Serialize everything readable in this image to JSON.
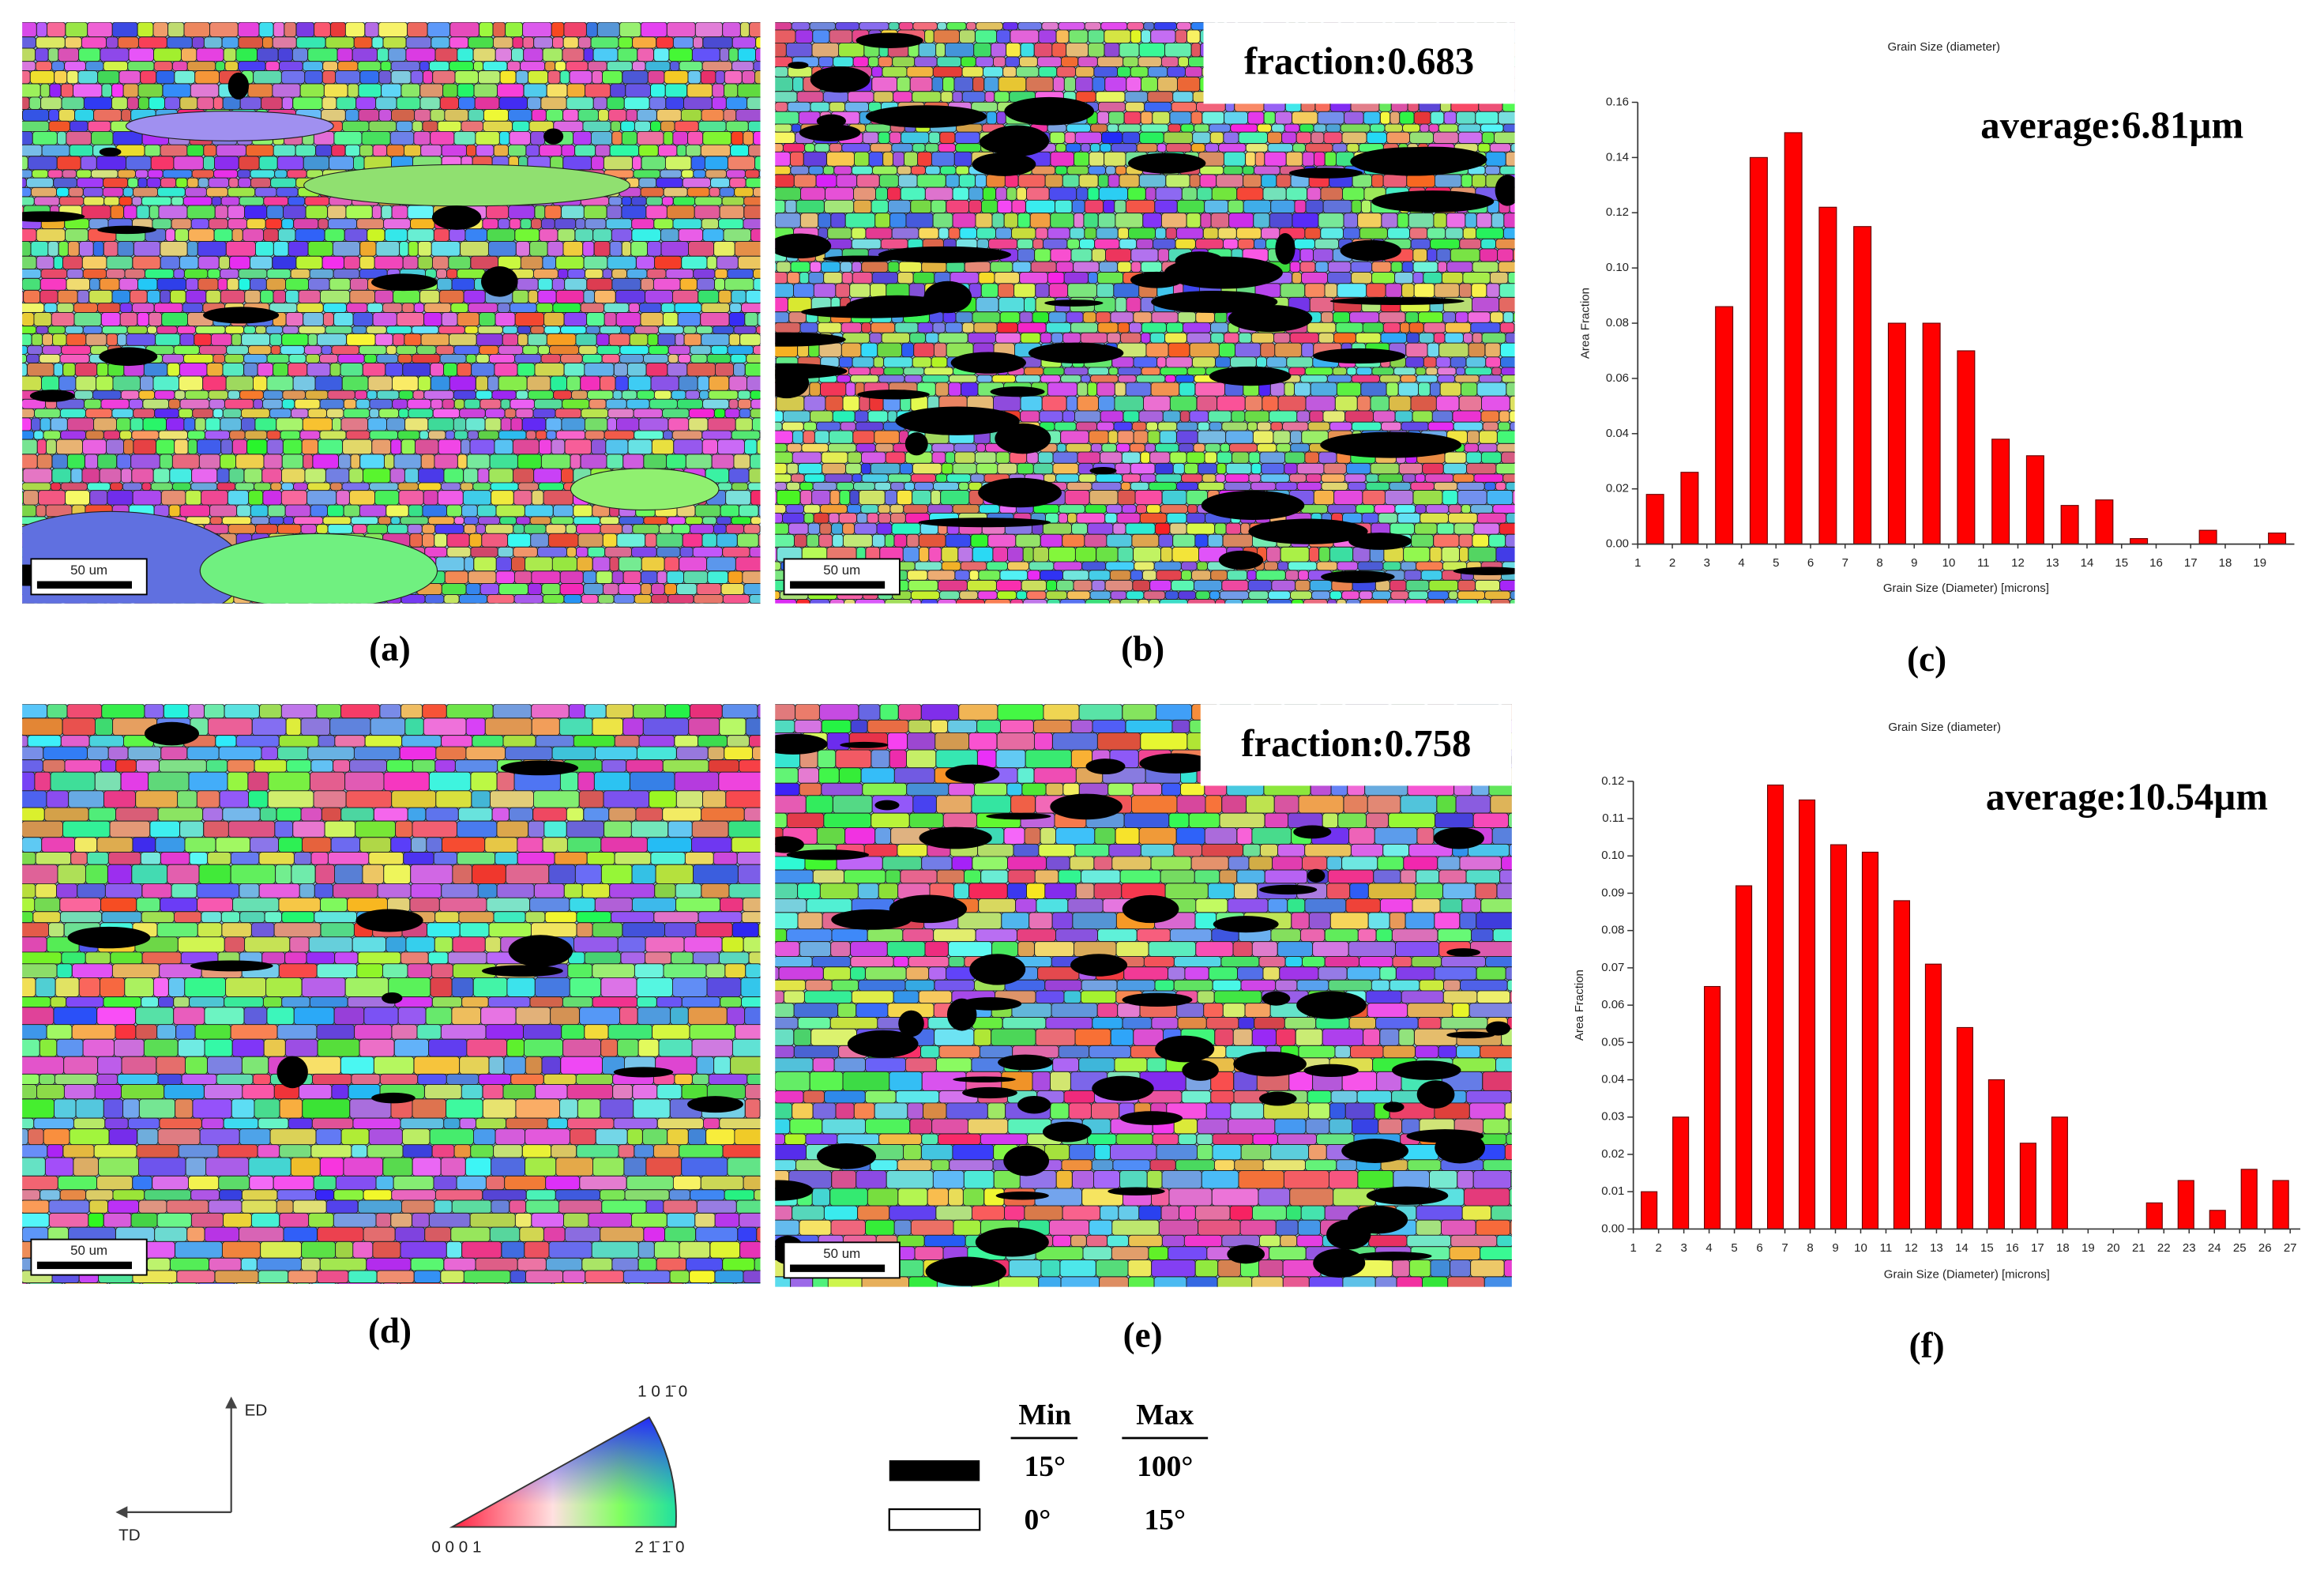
{
  "panel_labels": [
    "(a)",
    "(b)",
    "(c)",
    "(d)",
    "(e)",
    "(f)"
  ],
  "maps": [
    {
      "scale_bar": "50 um"
    },
    {
      "scale_bar": "50 um",
      "fraction": "fraction:0.683"
    },
    {
      "scale_bar": "50 um"
    },
    {
      "scale_bar": "50 um",
      "fraction": "fraction:0.758"
    }
  ],
  "chart_data": [
    {
      "type": "histogram",
      "title": "Grain Size (diameter)",
      "xlabel": "Grain Size (Diameter) [microns]",
      "ylabel": "Area Fraction",
      "annotation": "average:6.81µm",
      "color": "#ff0000",
      "bins": [
        1,
        2,
        3,
        4,
        5,
        6,
        7,
        8,
        9,
        10,
        11,
        12,
        13,
        14,
        15,
        16,
        17,
        18,
        19,
        20
      ],
      "values": [
        0.018,
        0.026,
        0.086,
        0.14,
        0.149,
        0.122,
        0.115,
        0.08,
        0.08,
        0.07,
        0.038,
        0.032,
        0.014,
        0.016,
        0.002,
        0,
        0.005,
        0,
        0.004
      ],
      "xlim": [
        1,
        20
      ],
      "xticks": [
        1,
        2,
        3,
        4,
        5,
        6,
        7,
        8,
        9,
        10,
        11,
        12,
        13,
        14,
        15,
        16,
        17,
        18,
        19
      ],
      "ylim": [
        0,
        0.16
      ],
      "yticks": [
        {
          "value": 0,
          "label": "0.00"
        },
        0.02,
        0.04,
        0.06,
        0.08,
        {
          "value": 0.1,
          "label": "0.10"
        },
        0.12,
        0.14,
        0.16
      ]
    },
    {
      "type": "histogram",
      "title": "Grain Size (diameter)",
      "xlabel": "Grain Size (Diameter) [microns]",
      "ylabel": "Area Fraction",
      "annotation": "average:10.54µm",
      "color": "#ff0000",
      "bins": [
        1,
        2.25,
        3.5,
        4.75,
        6,
        7.25,
        8.5,
        9.75,
        11,
        12.25,
        13.5,
        14.75,
        16,
        17.25,
        18.5,
        19.75,
        21,
        22.25,
        23.5,
        24.75,
        26,
        27.25
      ],
      "values": [
        0.01,
        0.03,
        0.065,
        0.092,
        0.119,
        0.115,
        0.103,
        0.101,
        0.088,
        0.071,
        0.054,
        0.04,
        0.023,
        0.03,
        0,
        0,
        0.007,
        0.013,
        0.005,
        0.016,
        0.013
      ],
      "xlim": [
        1,
        27.4
      ],
      "xticks": [
        1,
        2,
        3,
        4,
        5,
        6,
        7,
        8,
        9,
        10,
        11,
        12,
        13,
        14,
        15,
        16,
        17,
        18,
        19,
        20,
        21,
        22,
        23,
        24,
        25,
        26,
        27
      ],
      "ylim": [
        0,
        0.12
      ],
      "yticks": [
        {
          "value": 0,
          "label": "0.00"
        },
        0.01,
        0.02,
        0.03,
        0.04,
        0.05,
        0.06,
        0.07,
        0.08,
        0.09,
        {
          "value": 0.1,
          "label": "0.10"
        },
        0.11,
        0.12
      ]
    }
  ],
  "orientation_axes": {
    "vertical": "ED",
    "horizontal": "TD"
  },
  "ipf_legend": {
    "corners": [
      "0 0 0 1",
      "2 1̄ 1̄ 0",
      "1 0 1̄ 0"
    ]
  },
  "boundary_legend": {
    "headers": [
      "Min",
      "Max"
    ],
    "rows": [
      [
        "15°",
        "100°"
      ],
      [
        "0°",
        "15°"
      ]
    ]
  }
}
